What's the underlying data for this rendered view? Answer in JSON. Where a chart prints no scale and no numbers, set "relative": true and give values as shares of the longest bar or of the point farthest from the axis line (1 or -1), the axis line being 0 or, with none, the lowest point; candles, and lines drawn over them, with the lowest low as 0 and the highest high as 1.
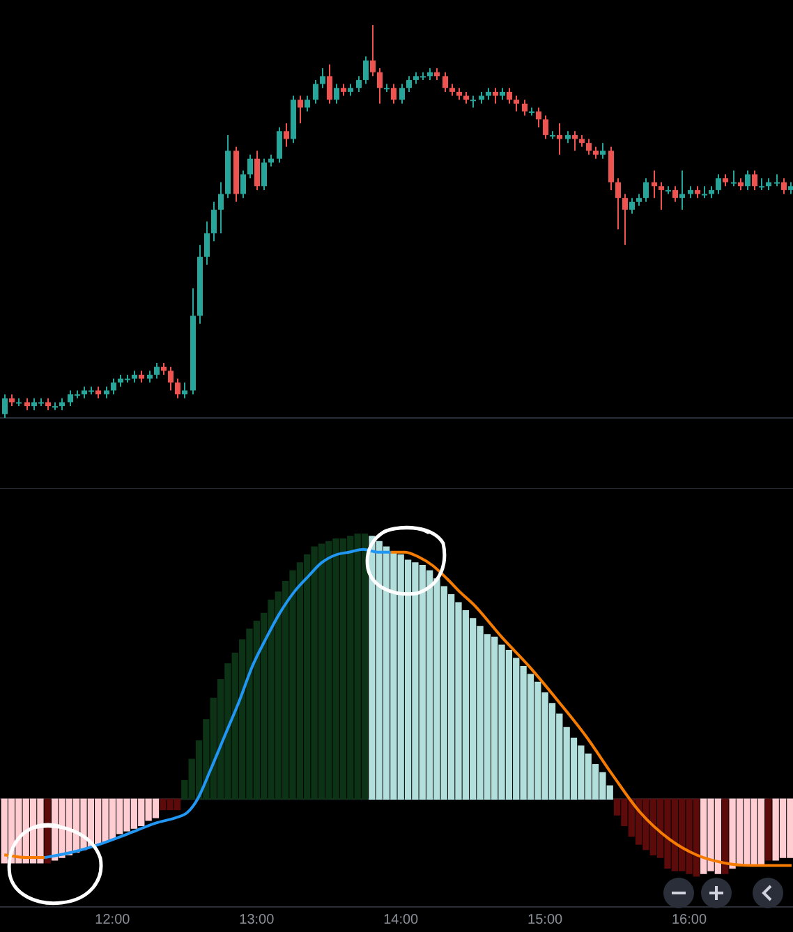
{
  "chart_data": [
    {
      "type": "candlestick",
      "relative": true,
      "tick_labels": false,
      "legend": false,
      "xlim": [
        11.22,
        16.72
      ],
      "x": [
        11.25,
        11.3,
        11.35,
        11.4,
        11.45,
        11.5,
        11.55,
        11.6,
        11.65,
        11.7,
        11.75,
        11.8,
        11.85,
        11.9,
        11.95,
        12,
        12.05,
        12.1,
        12.15,
        12.2,
        12.25,
        12.3,
        12.35,
        12.4,
        12.45,
        12.5,
        12.55,
        12.6,
        12.65,
        12.7,
        12.75,
        12.8,
        12.85,
        12.9,
        12.95,
        13,
        13.05,
        13.1,
        13.15,
        13.2,
        13.25,
        13.3,
        13.35,
        13.4,
        13.45,
        13.5,
        13.55,
        13.6,
        13.65,
        13.7,
        13.75,
        13.8,
        13.85,
        13.9,
        13.95,
        14,
        14.05,
        14.1,
        14.15,
        14.2,
        14.25,
        14.3,
        14.35,
        14.4,
        14.45,
        14.5,
        14.55,
        14.6,
        14.65,
        14.7,
        14.75,
        14.8,
        14.85,
        14.9,
        14.95,
        15,
        15.05,
        15.1,
        15.15,
        15.2,
        15.25,
        15.3,
        15.35,
        15.4,
        15.45,
        15.5,
        15.55,
        15.6,
        15.65,
        15.7,
        15.75,
        15.8,
        15.85,
        15.9,
        15.95,
        16,
        16.05,
        16.1,
        16.15,
        16.2,
        16.25,
        16.3,
        16.35,
        16.4,
        16.45,
        16.5,
        16.55,
        16.6,
        16.65,
        16.7
      ],
      "ohlc": [
        [
          0.01,
          0.06,
          0,
          0.05
        ],
        [
          0.05,
          0.06,
          0.03,
          0.04
        ],
        [
          0.04,
          0.05,
          0.03,
          0.04
        ],
        [
          0.04,
          0.05,
          0.02,
          0.03
        ],
        [
          0.03,
          0.05,
          0.02,
          0.04
        ],
        [
          0.04,
          0.05,
          0.03,
          0.04
        ],
        [
          0.04,
          0.05,
          0.02,
          0.03
        ],
        [
          0.03,
          0.04,
          0.02,
          0.03
        ],
        [
          0.03,
          0.05,
          0.02,
          0.04
        ],
        [
          0.04,
          0.07,
          0.03,
          0.06
        ],
        [
          0.06,
          0.07,
          0.05,
          0.06
        ],
        [
          0.06,
          0.08,
          0.05,
          0.07
        ],
        [
          0.07,
          0.08,
          0.06,
          0.07
        ],
        [
          0.07,
          0.08,
          0.05,
          0.06
        ],
        [
          0.06,
          0.08,
          0.05,
          0.07
        ],
        [
          0.07,
          0.1,
          0.06,
          0.09
        ],
        [
          0.09,
          0.11,
          0.08,
          0.1
        ],
        [
          0.1,
          0.11,
          0.09,
          0.1
        ],
        [
          0.1,
          0.12,
          0.09,
          0.11
        ],
        [
          0.11,
          0.12,
          0.09,
          0.1
        ],
        [
          0.1,
          0.12,
          0.09,
          0.11
        ],
        [
          0.11,
          0.14,
          0.1,
          0.13
        ],
        [
          0.13,
          0.14,
          0.11,
          0.12
        ],
        [
          0.12,
          0.13,
          0.07,
          0.09
        ],
        [
          0.09,
          0.1,
          0.05,
          0.06
        ],
        [
          0.06,
          0.09,
          0.05,
          0.07
        ],
        [
          0.07,
          0.33,
          0.06,
          0.26
        ],
        [
          0.26,
          0.44,
          0.24,
          0.41
        ],
        [
          0.41,
          0.5,
          0.39,
          0.47
        ],
        [
          0.47,
          0.55,
          0.45,
          0.53
        ],
        [
          0.53,
          0.6,
          0.47,
          0.57
        ],
        [
          0.57,
          0.72,
          0.56,
          0.68
        ],
        [
          0.68,
          0.69,
          0.55,
          0.57
        ],
        [
          0.57,
          0.63,
          0.56,
          0.62
        ],
        [
          0.62,
          0.67,
          0.61,
          0.66
        ],
        [
          0.66,
          0.68,
          0.58,
          0.59
        ],
        [
          0.59,
          0.66,
          0.58,
          0.65
        ],
        [
          0.65,
          0.67,
          0.64,
          0.66
        ],
        [
          0.66,
          0.74,
          0.65,
          0.73
        ],
        [
          0.73,
          0.75,
          0.69,
          0.71
        ],
        [
          0.71,
          0.82,
          0.7,
          0.81
        ],
        [
          0.81,
          0.82,
          0.75,
          0.79
        ],
        [
          0.79,
          0.82,
          0.78,
          0.81
        ],
        [
          0.81,
          0.86,
          0.8,
          0.85
        ],
        [
          0.85,
          0.89,
          0.84,
          0.87
        ],
        [
          0.87,
          0.9,
          0.8,
          0.81
        ],
        [
          0.81,
          0.85,
          0.8,
          0.84
        ],
        [
          0.84,
          0.85,
          0.82,
          0.83
        ],
        [
          0.83,
          0.85,
          0.82,
          0.84
        ],
        [
          0.84,
          0.87,
          0.83,
          0.86
        ],
        [
          0.86,
          0.92,
          0.85,
          0.91
        ],
        [
          0.91,
          1,
          0.87,
          0.88
        ],
        [
          0.88,
          0.89,
          0.8,
          0.84
        ],
        [
          0.84,
          0.85,
          0.83,
          0.84
        ],
        [
          0.84,
          0.85,
          0.8,
          0.81
        ],
        [
          0.81,
          0.85,
          0.8,
          0.84
        ],
        [
          0.84,
          0.87,
          0.83,
          0.86
        ],
        [
          0.86,
          0.88,
          0.85,
          0.87
        ],
        [
          0.87,
          0.88,
          0.86,
          0.87
        ],
        [
          0.87,
          0.89,
          0.86,
          0.88
        ],
        [
          0.88,
          0.89,
          0.86,
          0.87
        ],
        [
          0.87,
          0.88,
          0.83,
          0.84
        ],
        [
          0.84,
          0.85,
          0.82,
          0.83
        ],
        [
          0.83,
          0.84,
          0.81,
          0.82
        ],
        [
          0.82,
          0.83,
          0.8,
          0.81
        ],
        [
          0.81,
          0.82,
          0.79,
          0.81
        ],
        [
          0.81,
          0.83,
          0.8,
          0.82
        ],
        [
          0.82,
          0.84,
          0.81,
          0.83
        ],
        [
          0.83,
          0.84,
          0.8,
          0.82
        ],
        [
          0.82,
          0.84,
          0.81,
          0.83
        ],
        [
          0.83,
          0.84,
          0.8,
          0.81
        ],
        [
          0.81,
          0.82,
          0.78,
          0.8
        ],
        [
          0.8,
          0.81,
          0.77,
          0.78
        ],
        [
          0.78,
          0.79,
          0.77,
          0.78
        ],
        [
          0.78,
          0.79,
          0.74,
          0.76
        ],
        [
          0.76,
          0.77,
          0.71,
          0.72
        ],
        [
          0.72,
          0.73,
          0.71,
          0.72
        ],
        [
          0.72,
          0.75,
          0.67,
          0.71
        ],
        [
          0.71,
          0.73,
          0.7,
          0.72
        ],
        [
          0.72,
          0.73,
          0.68,
          0.71
        ],
        [
          0.71,
          0.72,
          0.69,
          0.7
        ],
        [
          0.7,
          0.71,
          0.67,
          0.68
        ],
        [
          0.68,
          0.69,
          0.66,
          0.67
        ],
        [
          0.67,
          0.7,
          0.66,
          0.68
        ],
        [
          0.68,
          0.69,
          0.58,
          0.6
        ],
        [
          0.6,
          0.61,
          0.48,
          0.56
        ],
        [
          0.56,
          0.57,
          0.44,
          0.53
        ],
        [
          0.53,
          0.56,
          0.52,
          0.55
        ],
        [
          0.55,
          0.57,
          0.54,
          0.56
        ],
        [
          0.56,
          0.61,
          0.55,
          0.6
        ],
        [
          0.6,
          0.63,
          0.56,
          0.59
        ],
        [
          0.59,
          0.6,
          0.53,
          0.58
        ],
        [
          0.58,
          0.59,
          0.57,
          0.58
        ],
        [
          0.58,
          0.59,
          0.55,
          0.56
        ],
        [
          0.56,
          0.63,
          0.53,
          0.57
        ],
        [
          0.57,
          0.59,
          0.56,
          0.58
        ],
        [
          0.58,
          0.59,
          0.56,
          0.57
        ],
        [
          0.57,
          0.59,
          0.56,
          0.57
        ],
        [
          0.57,
          0.59,
          0.56,
          0.58
        ],
        [
          0.58,
          0.62,
          0.57,
          0.61
        ],
        [
          0.61,
          0.62,
          0.59,
          0.6
        ],
        [
          0.6,
          0.63,
          0.59,
          0.6
        ],
        [
          0.6,
          0.61,
          0.58,
          0.59
        ],
        [
          0.59,
          0.63,
          0.58,
          0.62
        ],
        [
          0.62,
          0.63,
          0.58,
          0.59
        ],
        [
          0.59,
          0.61,
          0.58,
          0.59
        ],
        [
          0.59,
          0.61,
          0.58,
          0.6
        ],
        [
          0.6,
          0.62,
          0.59,
          0.6
        ],
        [
          0.6,
          0.61,
          0.57,
          0.58
        ],
        [
          0.58,
          0.6,
          0.57,
          0.59
        ]
      ],
      "colors": [
        "#26a69a",
        "#ef5350",
        "#26a69a",
        "#ef5350",
        "#26a69a",
        "#26a69a",
        "#ef5350",
        "#26a69a",
        "#26a69a",
        "#26a69a",
        "#26a69a",
        "#26a69a",
        "#26a69a",
        "#ef5350",
        "#26a69a",
        "#26a69a",
        "#26a69a",
        "#26a69a",
        "#26a69a",
        "#ef5350",
        "#26a69a",
        "#26a69a",
        "#ef5350",
        "#ef5350",
        "#ef5350",
        "#26a69a",
        "#26a69a",
        "#26a69a",
        "#26a69a",
        "#26a69a",
        "#26a69a",
        "#26a69a",
        "#ef5350",
        "#26a69a",
        "#26a69a",
        "#ef5350",
        "#26a69a",
        "#26a69a",
        "#26a69a",
        "#ef5350",
        "#26a69a",
        "#ef5350",
        "#26a69a",
        "#26a69a",
        "#26a69a",
        "#ef5350",
        "#26a69a",
        "#ef5350",
        "#26a69a",
        "#26a69a",
        "#26a69a",
        "#ef5350",
        "#ef5350",
        "#26a69a",
        "#ef5350",
        "#26a69a",
        "#26a69a",
        "#26a69a",
        "#26a69a",
        "#26a69a",
        "#ef5350",
        "#ef5350",
        "#ef5350",
        "#ef5350",
        "#ef5350",
        "#26a69a",
        "#26a69a",
        "#26a69a",
        "#ef5350",
        "#26a69a",
        "#ef5350",
        "#ef5350",
        "#ef5350",
        "#26a69a",
        "#ef5350",
        "#ef5350",
        "#26a69a",
        "#ef5350",
        "#26a69a",
        "#ef5350",
        "#ef5350",
        "#ef5350",
        "#ef5350",
        "#26a69a",
        "#ef5350",
        "#ef5350",
        "#ef5350",
        "#26a69a",
        "#26a69a",
        "#26a69a",
        "#ef5350",
        "#ef5350",
        "#26a69a",
        "#ef5350",
        "#26a69a",
        "#26a69a",
        "#ef5350",
        "#26a69a",
        "#26a69a",
        "#26a69a",
        "#ef5350",
        "#26a69a",
        "#ef5350",
        "#26a69a",
        "#ef5350",
        "#26a69a",
        "#26a69a",
        "#26a69a",
        "#ef5350",
        "#26a69a"
      ]
    },
    {
      "type": "bar",
      "relative": true,
      "tick_labels": "x",
      "legend": false,
      "xlim": [
        11.22,
        16.72
      ],
      "xticks": [
        {
          "value": 12,
          "label": "12:00"
        },
        {
          "value": 13,
          "label": "13:00"
        },
        {
          "value": 14,
          "label": "14:00"
        },
        {
          "value": 15,
          "label": "15:00"
        },
        {
          "value": 16,
          "label": "16:00"
        }
      ],
      "x": [
        11.25,
        11.3,
        11.35,
        11.4,
        11.45,
        11.5,
        11.55,
        11.6,
        11.65,
        11.7,
        11.75,
        11.8,
        11.85,
        11.9,
        11.95,
        12,
        12.05,
        12.1,
        12.15,
        12.2,
        12.25,
        12.3,
        12.35,
        12.4,
        12.45,
        12.5,
        12.55,
        12.6,
        12.65,
        12.7,
        12.75,
        12.8,
        12.85,
        12.9,
        12.95,
        13,
        13.05,
        13.1,
        13.15,
        13.2,
        13.25,
        13.3,
        13.35,
        13.4,
        13.45,
        13.5,
        13.55,
        13.6,
        13.65,
        13.7,
        13.75,
        13.8,
        13.85,
        13.9,
        13.95,
        14,
        14.05,
        14.1,
        14.15,
        14.2,
        14.25,
        14.3,
        14.35,
        14.4,
        14.45,
        14.5,
        14.55,
        14.6,
        14.65,
        14.7,
        14.75,
        14.8,
        14.85,
        14.9,
        14.95,
        15,
        15.05,
        15.1,
        15.15,
        15.2,
        15.25,
        15.3,
        15.35,
        15.4,
        15.45,
        15.5,
        15.55,
        15.6,
        15.65,
        15.7,
        15.75,
        15.8,
        15.85,
        15.9,
        15.95,
        16,
        16.05,
        16.1,
        16.15,
        16.2,
        16.25,
        16.3,
        16.35,
        16.4,
        16.45,
        16.5,
        16.55,
        16.6,
        16.65,
        16.7
      ],
      "series": [
        {
          "type": "bar",
          "values": [
            -0.24,
            -0.24,
            -0.24,
            -0.24,
            -0.24,
            -0.24,
            -0.24,
            -0.23,
            -0.22,
            -0.21,
            -0.2,
            -0.19,
            -0.18,
            -0.17,
            -0.16,
            -0.15,
            -0.13,
            -0.12,
            -0.11,
            -0.1,
            -0.08,
            -0.07,
            -0.04,
            -0.04,
            -0.04,
            0.07,
            0.15,
            0.22,
            0.3,
            0.38,
            0.45,
            0.51,
            0.55,
            0.6,
            0.64,
            0.67,
            0.7,
            0.75,
            0.78,
            0.82,
            0.86,
            0.89,
            0.92,
            0.95,
            0.96,
            0.97,
            0.98,
            0.98,
            0.99,
            1,
            1,
            0.99,
            0.97,
            0.95,
            0.93,
            0.92,
            0.9,
            0.89,
            0.88,
            0.86,
            0.83,
            0.8,
            0.77,
            0.74,
            0.71,
            0.68,
            0.65,
            0.62,
            0.61,
            0.58,
            0.56,
            0.53,
            0.5,
            0.47,
            0.44,
            0.4,
            0.36,
            0.32,
            0.27,
            0.23,
            0.2,
            0.17,
            0.13,
            0.1,
            0.05,
            -0.06,
            -0.1,
            -0.14,
            -0.17,
            -0.19,
            -0.21,
            -0.22,
            -0.26,
            -0.27,
            -0.27,
            -0.28,
            -0.29,
            -0.28,
            -0.27,
            -0.28,
            -0.28,
            -0.26,
            -0.25,
            -0.25,
            -0.25,
            -0.25,
            -0.23,
            -0.23,
            -0.22,
            -0.22
          ],
          "colors": [
            "#ffcdd2",
            "#ffcdd2",
            "#ffcdd2",
            "#ffcdd2",
            "#ffcdd2",
            "#ffcdd2",
            "#5c0a0a",
            "#ffcdd2",
            "#ffcdd2",
            "#ffcdd2",
            "#ffcdd2",
            "#ffcdd2",
            "#ffcdd2",
            "#ffcdd2",
            "#ffcdd2",
            "#ffcdd2",
            "#ffcdd2",
            "#ffcdd2",
            "#ffcdd2",
            "#ffcdd2",
            "#ffcdd2",
            "#ffcdd2",
            "#5c0a0a",
            "#5c0a0a",
            "#5c0a0a",
            "#0d3316",
            "#0d3316",
            "#0d3316",
            "#0d3316",
            "#0d3316",
            "#0d3316",
            "#0d3316",
            "#0d3316",
            "#0d3316",
            "#0d3316",
            "#0d3316",
            "#0d3316",
            "#0d3316",
            "#0d3316",
            "#0d3316",
            "#0d3316",
            "#0d3316",
            "#0d3316",
            "#0d3316",
            "#0d3316",
            "#0d3316",
            "#0d3316",
            "#0d3316",
            "#0d3316",
            "#0d3316",
            "#0d3316",
            "#b2dfdb",
            "#b2dfdb",
            "#b2dfdb",
            "#b2dfdb",
            "#b2dfdb",
            "#b2dfdb",
            "#b2dfdb",
            "#b2dfdb",
            "#b2dfdb",
            "#b2dfdb",
            "#b2dfdb",
            "#b2dfdb",
            "#b2dfdb",
            "#b2dfdb",
            "#b2dfdb",
            "#b2dfdb",
            "#b2dfdb",
            "#b2dfdb",
            "#b2dfdb",
            "#b2dfdb",
            "#b2dfdb",
            "#b2dfdb",
            "#b2dfdb",
            "#b2dfdb",
            "#b2dfdb",
            "#b2dfdb",
            "#b2dfdb",
            "#b2dfdb",
            "#b2dfdb",
            "#b2dfdb",
            "#b2dfdb",
            "#b2dfdb",
            "#b2dfdb",
            "#b2dfdb",
            "#5c0a0a",
            "#5c0a0a",
            "#5c0a0a",
            "#5c0a0a",
            "#5c0a0a",
            "#5c0a0a",
            "#5c0a0a",
            "#5c0a0a",
            "#5c0a0a",
            "#5c0a0a",
            "#5c0a0a",
            "#5c0a0a",
            "#ffcdd2",
            "#ffcdd2",
            "#ffcdd2",
            "#5c0a0a",
            "#ffcdd2",
            "#ffcdd2",
            "#ffcdd2",
            "#ffcdd2",
            "#ffcdd2",
            "#5c0a0a",
            "#ffcdd2",
            "#ffcdd2",
            "#ffcdd2"
          ]
        },
        {
          "type": "line",
          "color": "#2196f3",
          "x": [
            11.53,
            11.72,
            11.91,
            12.11,
            12.3,
            12.44,
            12.52,
            12.59,
            12.68,
            12.78,
            12.88,
            12.97,
            13.07,
            13.16,
            13.26,
            13.36,
            13.45,
            13.55,
            13.64,
            13.74,
            13.84,
            13.93
          ],
          "values": [
            -0.22,
            -0.2,
            -0.17,
            -0.13,
            -0.09,
            -0.07,
            -0.05,
            0,
            0.11,
            0.24,
            0.37,
            0.5,
            0.61,
            0.7,
            0.78,
            0.84,
            0.89,
            0.92,
            0.93,
            0.94,
            0.93,
            0.93
          ]
        },
        {
          "type": "line",
          "color": "#f57c00",
          "x": [
            11.25,
            11.4,
            11.53,
            11.7,
            13.93,
            14.03,
            14.13,
            14.22,
            14.32,
            14.41,
            14.51,
            14.7,
            14.89,
            15.09,
            15.28,
            15.47,
            15.66,
            15.86,
            16.05,
            16.24,
            16.43,
            16.71
          ],
          "values": [
            -0.21,
            -0.22,
            -0.22,
            null,
            0.93,
            0.93,
            0.91,
            0.88,
            0.83,
            0.78,
            0.73,
            0.61,
            0.5,
            0.37,
            0.24,
            0.09,
            -0.05,
            -0.15,
            -0.21,
            -0.24,
            -0.25,
            -0.25
          ]
        }
      ]
    }
  ]
}
